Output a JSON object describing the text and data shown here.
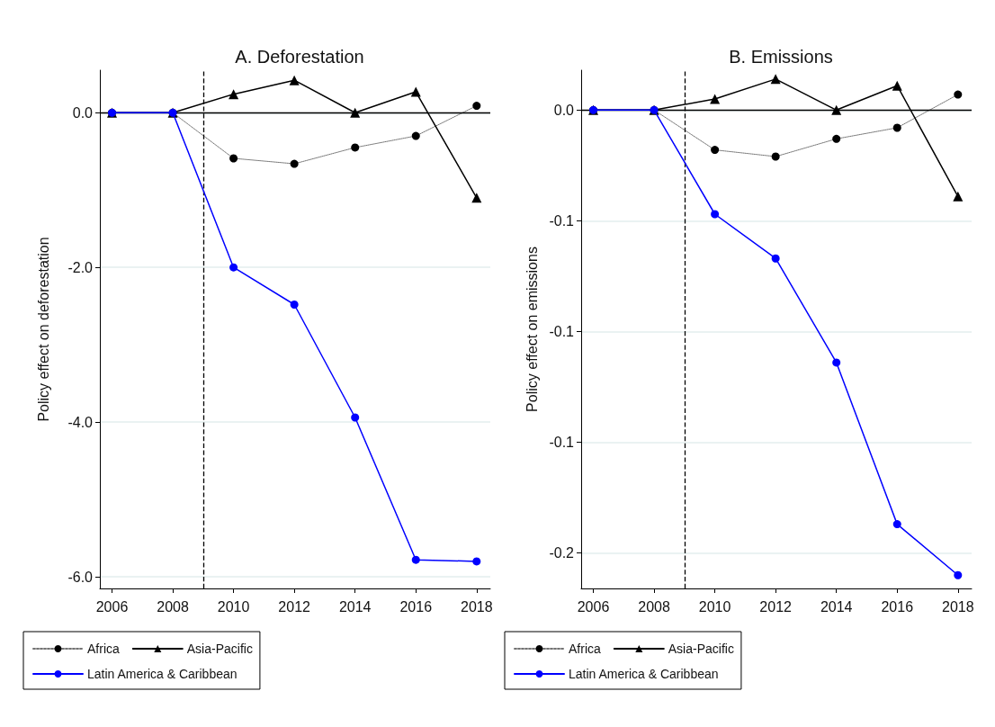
{
  "chart_data": [
    {
      "type": "line",
      "title": "A. Deforestation",
      "ylabel": "Policy effect on deforestation",
      "x": [
        2006,
        2008,
        2010,
        2012,
        2014,
        2016,
        2018
      ],
      "xlim": [
        2005.6,
        2018.45
      ],
      "xticks": [
        2006,
        2008,
        2010,
        2012,
        2014,
        2016,
        2018
      ],
      "ylim": [
        -6.15,
        0.55
      ],
      "yticks": [
        {
          "value": 0,
          "label": "0.0"
        },
        {
          "value": -2,
          "label": "-2.0"
        },
        {
          "value": -4,
          "label": "-4.0"
        },
        {
          "value": -6,
          "label": "-6.0"
        }
      ],
      "grid": "y",
      "legend": "bottom",
      "series": [
        {
          "name": "Africa",
          "color": "#000000",
          "marker": "circle",
          "line_style": "dotted",
          "values": [
            0,
            0,
            -0.59,
            -0.66,
            -0.45,
            -0.3,
            0.09
          ]
        },
        {
          "name": "Asia-Pacific",
          "color": "#000000",
          "marker": "triangle",
          "line_style": "solid",
          "values": [
            0,
            0,
            0.24,
            0.42,
            0,
            0.27,
            -1.1
          ]
        },
        {
          "name": "Latin America & Caribbean",
          "color": "#0000ff",
          "marker": "circle",
          "line_style": "solid",
          "values": [
            0,
            0,
            -2.0,
            -2.48,
            -3.94,
            -5.78,
            -5.8
          ]
        }
      ],
      "ref_lines": [
        {
          "axis": "y",
          "value": 0,
          "color": "#000000",
          "line_style": "solid"
        },
        {
          "axis": "x",
          "value": 2009,
          "color": "#000000",
          "line_style": "dashed"
        }
      ]
    },
    {
      "type": "line",
      "title": "B. Emissions",
      "ylabel": "Policy effect on emissions",
      "x": [
        2006,
        2008,
        2010,
        2012,
        2014,
        2016,
        2018
      ],
      "xlim": [
        2005.6,
        2018.45
      ],
      "xticks": [
        2006,
        2008,
        2010,
        2012,
        2014,
        2016,
        2018
      ],
      "ylim": [
        -0.216,
        0.018
      ],
      "yticks": [
        {
          "value": 0,
          "label": "0.0"
        },
        {
          "value": -0.05,
          "label": "-0.1"
        },
        {
          "value": -0.1,
          "label": "-0.1"
        },
        {
          "value": -0.15,
          "label": "-0.1"
        },
        {
          "value": -0.2,
          "label": "-0.2"
        }
      ],
      "grid": "y",
      "legend": "bottom",
      "series": [
        {
          "name": "Africa",
          "color": "#000000",
          "marker": "circle",
          "line_style": "dotted",
          "values": [
            0,
            0,
            -0.018,
            -0.021,
            -0.013,
            -0.008,
            0.007
          ]
        },
        {
          "name": "Asia-Pacific",
          "color": "#000000",
          "marker": "triangle",
          "line_style": "solid",
          "values": [
            0,
            0,
            0.005,
            0.014,
            0,
            0.011,
            -0.039
          ]
        },
        {
          "name": "Latin America & Caribbean",
          "color": "#0000ff",
          "marker": "circle",
          "line_style": "solid",
          "values": [
            0,
            0,
            -0.047,
            -0.067,
            -0.114,
            -0.187,
            -0.21
          ]
        }
      ],
      "ref_lines": [
        {
          "axis": "y",
          "value": 0,
          "color": "#000000",
          "line_style": "solid"
        },
        {
          "axis": "x",
          "value": 2009,
          "color": "#000000",
          "line_style": "dashed"
        }
      ]
    }
  ]
}
